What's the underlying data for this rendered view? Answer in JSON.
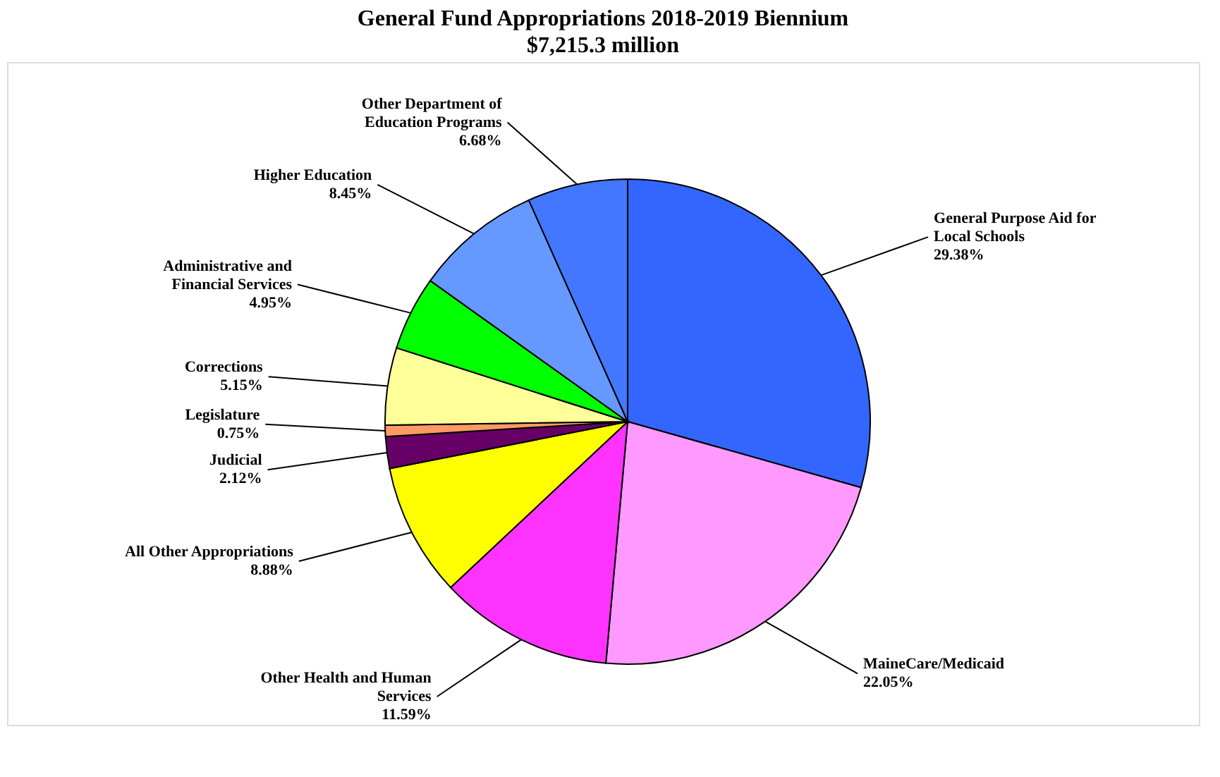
{
  "chart_data": {
    "type": "pie",
    "title": "General Fund Appropriations  2018-2019 Biennium",
    "subtitle": "$7,215.3 million",
    "categories": [
      "General Purpose Aid for Local Schools",
      "MaineCare/Medicaid",
      "Other Health and Human Services",
      "All Other Appropriations",
      "Judicial",
      "Legislature",
      "Corrections",
      "Administrative and Financial Services",
      "Higher Education",
      "Other Department of Education Programs"
    ],
    "values": [
      29.38,
      22.05,
      11.59,
      8.88,
      2.12,
      0.75,
      5.15,
      4.95,
      8.45,
      6.68
    ],
    "value_labels": [
      "29.38%",
      "22.05%",
      "11.59%",
      "8.88%",
      "2.12%",
      "0.75%",
      "5.15%",
      "4.95%",
      "8.45%",
      "6.68%"
    ],
    "colors": [
      "#3366ff",
      "#ff99ff",
      "#ff33ff",
      "#ffff00",
      "#660066",
      "#ff9966",
      "#ffff99",
      "#00ff00",
      "#6699ff",
      "#4477ff"
    ]
  }
}
